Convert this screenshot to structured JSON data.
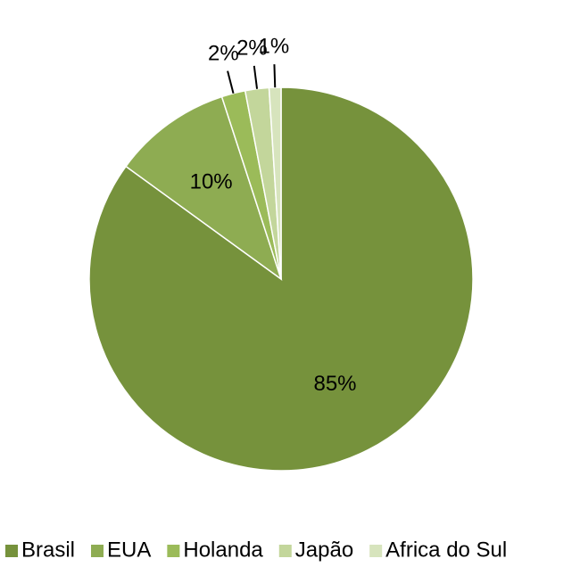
{
  "chart_data": {
    "type": "pie",
    "categories": [
      "Brasil",
      "EUA",
      "Holanda",
      "Japão",
      "Africa do Sul"
    ],
    "values": [
      85,
      10,
      2,
      2,
      1
    ],
    "value_labels": [
      "85%",
      "10%",
      "2%",
      "2%",
      "1%"
    ],
    "colors": [
      "#76923c",
      "#8eac52",
      "#9bbb59",
      "#c3d69b",
      "#d7e4bd"
    ],
    "legend": "bottom"
  }
}
